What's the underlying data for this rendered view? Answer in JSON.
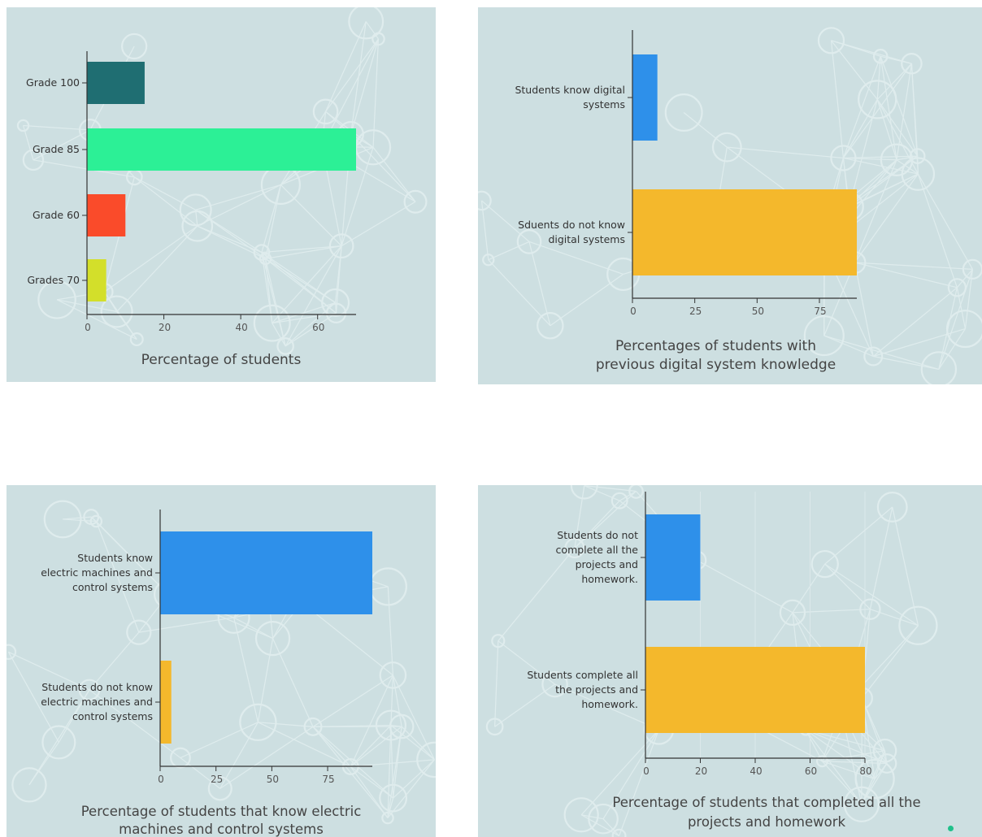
{
  "colors": {
    "panel_bg": "#cddfe1",
    "network": "#e1eeef",
    "axis": "#333333",
    "tick_text": "#555555",
    "label_text": "#333333",
    "dot": "#1fc08a"
  },
  "chart_data": [
    {
      "type": "bar",
      "orientation": "horizontal",
      "title": [
        "Percentage of students"
      ],
      "categories": [
        "Grade 100",
        "Grade 85",
        "Grade 60",
        "Grades 70"
      ],
      "values": [
        15,
        70,
        10,
        5
      ],
      "colors": [
        "#1f6e72",
        "#2cf096",
        "#fa4b2a",
        "#d3df2a"
      ],
      "xlim": [
        0,
        70
      ],
      "xticks": [
        0,
        20,
        40,
        60
      ],
      "grid": false,
      "legend": "none"
    },
    {
      "type": "bar",
      "orientation": "horizontal",
      "title": [
        "Percentages of students with",
        "previous digital system knowledge"
      ],
      "categories": [
        [
          "Students know digital",
          "systems"
        ],
        [
          "Sduents do not know",
          "digital systems"
        ]
      ],
      "values": [
        10,
        90
      ],
      "colors": [
        "#2e90ea",
        "#f4b82c"
      ],
      "xlim": [
        0,
        90
      ],
      "xticks": [
        0,
        25,
        50,
        75
      ],
      "grid": false,
      "legend": "none"
    },
    {
      "type": "bar",
      "orientation": "horizontal",
      "title": [
        "Percentage of students that know electric",
        "machines and control systems"
      ],
      "categories": [
        [
          "Students know",
          "electric machines and",
          "control systems"
        ],
        [
          "Students do not know",
          "electric machines and",
          "control systems"
        ]
      ],
      "values": [
        95,
        5
      ],
      "colors": [
        "#2e90ea",
        "#f4b82c"
      ],
      "xlim": [
        0,
        95
      ],
      "xticks": [
        0,
        25,
        50,
        75
      ],
      "grid": false,
      "legend": "none"
    },
    {
      "type": "bar",
      "orientation": "horizontal",
      "title": [
        "Percentage of students that completed all the",
        "projects and homework"
      ],
      "categories": [
        [
          "Students do not",
          "complete all the",
          "projects and",
          "homework."
        ],
        [
          "Students complete all",
          "the projects and",
          "homework."
        ]
      ],
      "values": [
        20,
        80
      ],
      "colors": [
        "#2e90ea",
        "#f4b82c"
      ],
      "xlim": [
        0,
        80
      ],
      "xticks": [
        0,
        20,
        40,
        60,
        80
      ],
      "grid": true,
      "legend": "none"
    }
  ]
}
